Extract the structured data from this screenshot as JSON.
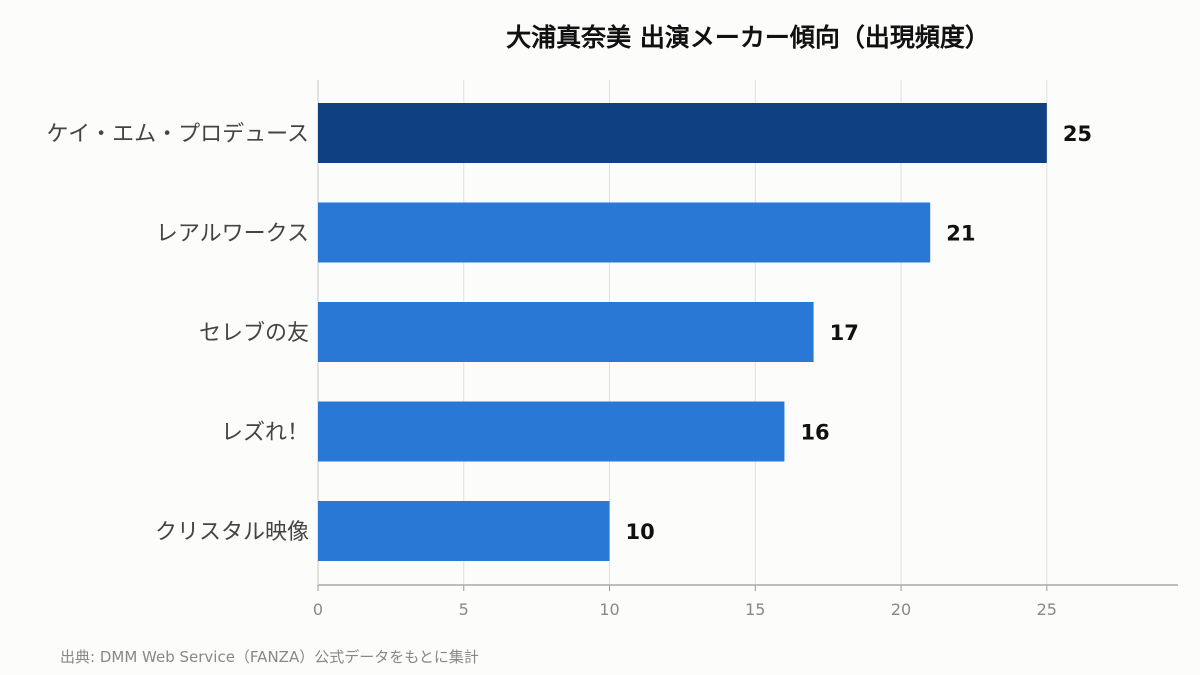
{
  "chart_data": {
    "type": "bar",
    "orientation": "horizontal",
    "title": "大浦真奈美 出演メーカー傾向（出現頻度）",
    "categories": [
      "ケイ・エム・プロデュース",
      "レアルワークス",
      "セレブの友",
      "レズれ！",
      "クリスタル映像"
    ],
    "values": [
      25,
      21,
      17,
      16,
      10
    ],
    "xlim": [
      0,
      29.5
    ],
    "xticks": [
      0,
      5,
      10,
      15,
      20,
      25
    ],
    "grid": true,
    "highlight_color": "#0f4082",
    "bar_color": "#2a78d6"
  },
  "source": "出典: DMM Web Service（FANZA）公式データをもとに集計"
}
